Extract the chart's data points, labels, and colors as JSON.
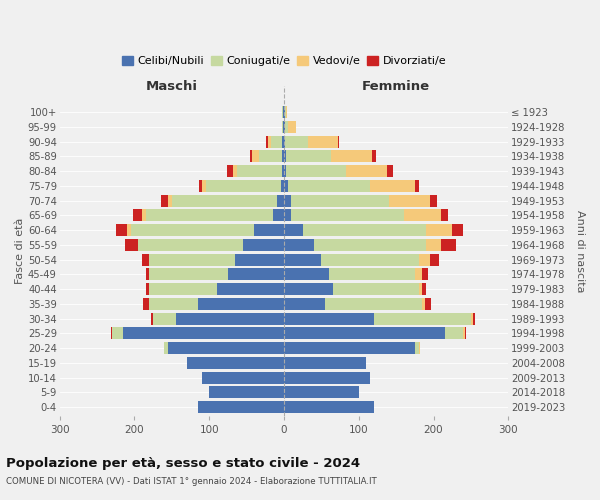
{
  "age_groups": [
    "0-4",
    "5-9",
    "10-14",
    "15-19",
    "20-24",
    "25-29",
    "30-34",
    "35-39",
    "40-44",
    "45-49",
    "50-54",
    "55-59",
    "60-64",
    "65-69",
    "70-74",
    "75-79",
    "80-84",
    "85-89",
    "90-94",
    "95-99",
    "100+"
  ],
  "birth_years": [
    "2019-2023",
    "2014-2018",
    "2009-2013",
    "2004-2008",
    "1999-2003",
    "1994-1998",
    "1989-1993",
    "1984-1988",
    "1979-1983",
    "1974-1978",
    "1969-1973",
    "1964-1968",
    "1959-1963",
    "1954-1958",
    "1949-1953",
    "1944-1948",
    "1939-1943",
    "1934-1938",
    "1929-1933",
    "1924-1928",
    "≤ 1923"
  ],
  "males": {
    "celibe": [
      115,
      100,
      110,
      130,
      155,
      215,
      145,
      115,
      90,
      75,
      65,
      55,
      40,
      15,
      10,
      4,
      3,
      3,
      2,
      1,
      1
    ],
    "coniugato": [
      0,
      0,
      0,
      0,
      5,
      15,
      30,
      65,
      90,
      105,
      115,
      140,
      165,
      170,
      140,
      100,
      60,
      30,
      15,
      2,
      1
    ],
    "vedovo": [
      0,
      0,
      0,
      0,
      0,
      0,
      0,
      0,
      0,
      0,
      0,
      0,
      5,
      5,
      5,
      5,
      5,
      10,
      5,
      0,
      0
    ],
    "divorziato": [
      0,
      0,
      0,
      0,
      0,
      2,
      3,
      8,
      5,
      5,
      10,
      18,
      15,
      12,
      10,
      5,
      8,
      3,
      2,
      0,
      0
    ]
  },
  "females": {
    "nubile": [
      120,
      100,
      115,
      110,
      175,
      215,
      120,
      55,
      65,
      60,
      50,
      40,
      25,
      10,
      10,
      5,
      3,
      3,
      2,
      1,
      1
    ],
    "coniugata": [
      0,
      0,
      0,
      0,
      5,
      25,
      130,
      130,
      115,
      115,
      130,
      150,
      165,
      150,
      130,
      110,
      80,
      60,
      30,
      5,
      2
    ],
    "vedova": [
      0,
      0,
      0,
      0,
      2,
      2,
      3,
      3,
      5,
      10,
      15,
      20,
      35,
      50,
      55,
      60,
      55,
      55,
      40,
      10,
      1
    ],
    "divorziata": [
      0,
      0,
      0,
      0,
      0,
      2,
      3,
      8,
      5,
      8,
      12,
      20,
      15,
      10,
      10,
      5,
      8,
      5,
      2,
      0,
      0
    ]
  },
  "colors": {
    "celibe": "#4a72b0",
    "coniugato": "#c6d9a0",
    "vedovo": "#f5c97a",
    "divorziato": "#cc2222"
  },
  "xlim": 300,
  "title": "Popolazione per età, sesso e stato civile - 2024",
  "subtitle": "COMUNE DI NICOTERA (VV) - Dati ISTAT 1° gennaio 2024 - Elaborazione TUTTITALIA.IT",
  "xlabel_left": "Maschi",
  "xlabel_right": "Femmine",
  "ylabel_left": "Fasce di età",
  "ylabel_right": "Anni di nascita",
  "legend_labels": [
    "Celibi/Nubili",
    "Coniugati/e",
    "Vedovi/e",
    "Divorziati/e"
  ],
  "background_color": "#f0f0f0"
}
